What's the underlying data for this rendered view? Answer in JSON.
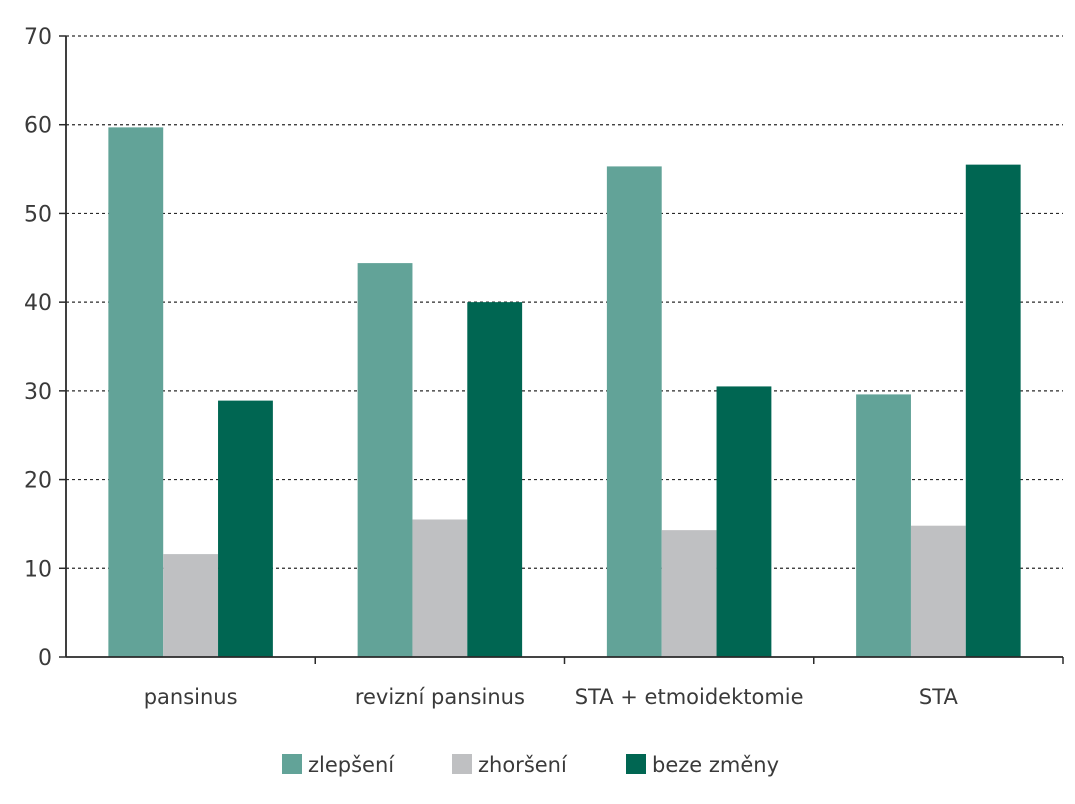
{
  "chart_data": {
    "type": "bar",
    "title": "",
    "xlabel": "",
    "ylabel": "",
    "ylim": [
      0,
      70
    ],
    "yticks": [
      0,
      10,
      20,
      30,
      40,
      50,
      60,
      70
    ],
    "grid": "horizontal dashed",
    "legend_position": "bottom",
    "categories": [
      "pansinus",
      "revizní pansinus",
      "STA + etmoidektomie",
      "STA"
    ],
    "series": [
      {
        "name": "zlepšení",
        "color": "#62a398",
        "values": [
          59.7,
          44.4,
          55.3,
          29.6
        ]
      },
      {
        "name": "zhoršení",
        "color": "#bfc0c2",
        "values": [
          11.6,
          15.5,
          14.3,
          14.8
        ]
      },
      {
        "name": "beze změny",
        "color": "#006652",
        "values": [
          28.9,
          40.0,
          30.5,
          55.5
        ]
      }
    ]
  }
}
